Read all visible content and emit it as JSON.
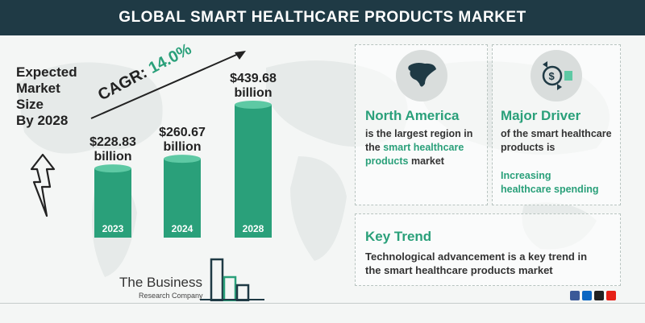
{
  "header": {
    "title": "GLOBAL SMART HEALTHCARE PRODUCTS MARKET"
  },
  "left_label": {
    "lines": [
      "Expected",
      "Market",
      "Size",
      "By 2028"
    ]
  },
  "cagr": {
    "prefix": "CAGR: ",
    "value": "14.0%"
  },
  "chart_data": {
    "type": "bar",
    "categories": [
      "2023",
      "2024",
      "2028"
    ],
    "values": [
      228.83,
      260.67,
      439.68
    ],
    "value_labels": [
      [
        "$228.83",
        "billion"
      ],
      [
        "$260.67",
        "billion"
      ],
      [
        "$439.68",
        "billion"
      ]
    ],
    "bar_color": "#2aa07a",
    "bar_top_color": "#5ec9a4",
    "ylim": [
      0,
      450
    ],
    "grid": false
  },
  "north_america": {
    "icon": "north-america-map-icon",
    "title": "North America",
    "line1": "is the largest region in",
    "line2_prefix": "the ",
    "line2_accent": "smart healthcare",
    "line3_accent": "products",
    "line3_suffix": " market"
  },
  "major_driver": {
    "icon": "money-exchange-icon",
    "title": "Major Driver",
    "line1": "of the smart healthcare",
    "line2": "products is",
    "accent_line1": "Increasing",
    "accent_line2": "healthcare spending"
  },
  "key_trend": {
    "title": "Key Trend",
    "line1": "Technological advancement is a key trend in",
    "line2": "the smart healthcare products market"
  },
  "logo": {
    "name": "The Business",
    "sub": "Research Company"
  },
  "colors": {
    "header": "#1f3a45",
    "accent": "#2aa07a"
  }
}
